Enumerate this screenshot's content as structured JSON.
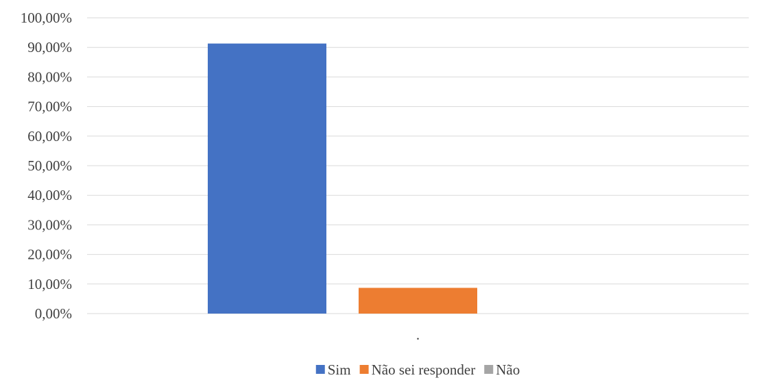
{
  "chart_data": {
    "type": "bar",
    "categories": [
      "."
    ],
    "series": [
      {
        "name": "Sim",
        "values": [
          91.3
        ],
        "color": "#4472C4"
      },
      {
        "name": "Não sei responder",
        "values": [
          8.7
        ],
        "color": "#ED7D31"
      },
      {
        "name": "Não",
        "values": [
          0.0
        ],
        "color": "#A5A5A5"
      }
    ],
    "ylim": [
      0,
      100
    ],
    "yticks": [
      "0,00%",
      "10,00%",
      "20,00%",
      "30,00%",
      "40,00%",
      "50,00%",
      "60,00%",
      "70,00%",
      "80,00%",
      "90,00%",
      "100,00%"
    ],
    "grid": true,
    "legend_position": "bottom"
  }
}
